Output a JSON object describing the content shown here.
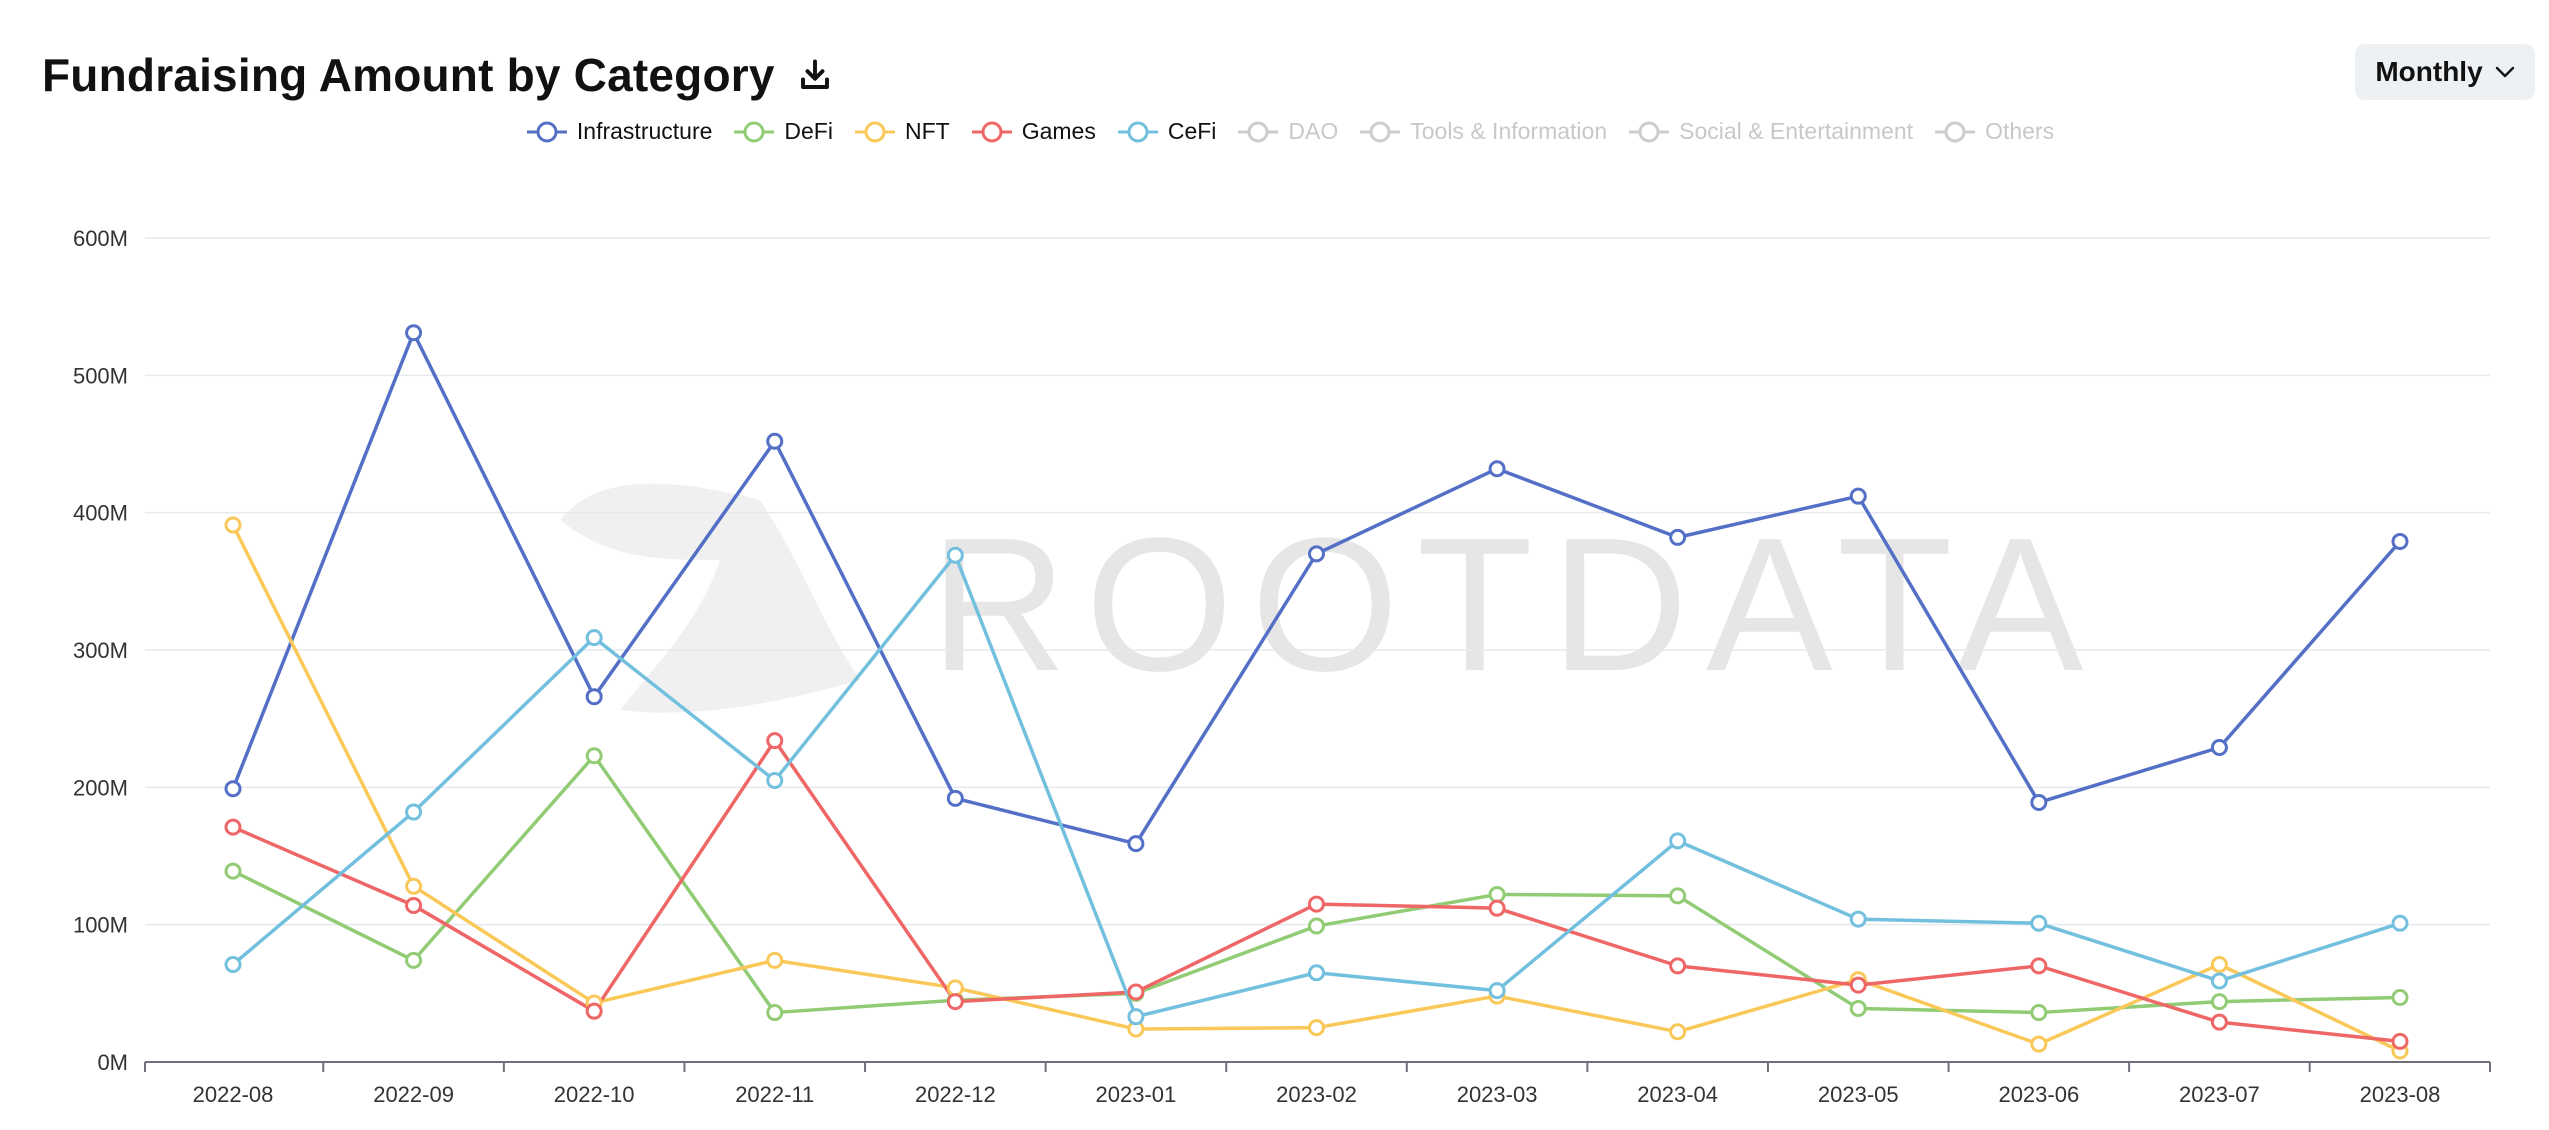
{
  "header": {
    "title": "Fundraising Amount by Category",
    "period_label": "Monthly"
  },
  "watermark": "ROOTDATA",
  "legend": [
    {
      "name": "Infrastructure",
      "color": "#5470c6",
      "active": true
    },
    {
      "name": "DeFi",
      "color": "#91cc75",
      "active": true
    },
    {
      "name": "NFT",
      "color": "#fac858",
      "active": true
    },
    {
      "name": "Games",
      "color": "#ee6666",
      "active": true
    },
    {
      "name": "CeFi",
      "color": "#73c0de",
      "active": true
    },
    {
      "name": "DAO",
      "color": "#cccccc",
      "active": false
    },
    {
      "name": "Tools & Information",
      "color": "#cccccc",
      "active": false
    },
    {
      "name": "Social & Entertainment",
      "color": "#cccccc",
      "active": false
    },
    {
      "name": "Others",
      "color": "#cccccc",
      "active": false
    }
  ],
  "chart_data": {
    "type": "line",
    "title": "Fundraising Amount by Category",
    "categories": [
      "2022-08",
      "2022-09",
      "2022-10",
      "2022-11",
      "2022-12",
      "2023-01",
      "2023-02",
      "2023-03",
      "2023-04",
      "2023-05",
      "2023-06",
      "2023-07",
      "2023-08"
    ],
    "y_ticks": [
      "0M",
      "100M",
      "200M",
      "300M",
      "400M",
      "500M",
      "600M"
    ],
    "ylim": [
      0,
      600
    ],
    "grid": true,
    "legend_position": "top-center",
    "series": [
      {
        "name": "Infrastructure",
        "color": "#5470c6",
        "values": [
          199,
          531,
          266,
          452,
          192,
          159,
          370,
          432,
          382,
          412,
          189,
          229,
          379
        ]
      },
      {
        "name": "DeFi",
        "color": "#91cc75",
        "values": [
          139,
          74,
          223,
          36,
          45,
          50,
          99,
          122,
          121,
          39,
          36,
          44,
          47
        ]
      },
      {
        "name": "NFT",
        "color": "#fac858",
        "values": [
          391,
          128,
          43,
          74,
          54,
          24,
          25,
          48,
          22,
          60,
          13,
          71,
          8
        ]
      },
      {
        "name": "Games",
        "color": "#ee6666",
        "values": [
          171,
          114,
          37,
          234,
          44,
          51,
          115,
          112,
          70,
          56,
          70,
          29,
          15
        ]
      },
      {
        "name": "CeFi",
        "color": "#73c0de",
        "values": [
          71,
          182,
          309,
          205,
          369,
          33,
          65,
          52,
          161,
          104,
          101,
          59,
          101
        ]
      }
    ]
  }
}
